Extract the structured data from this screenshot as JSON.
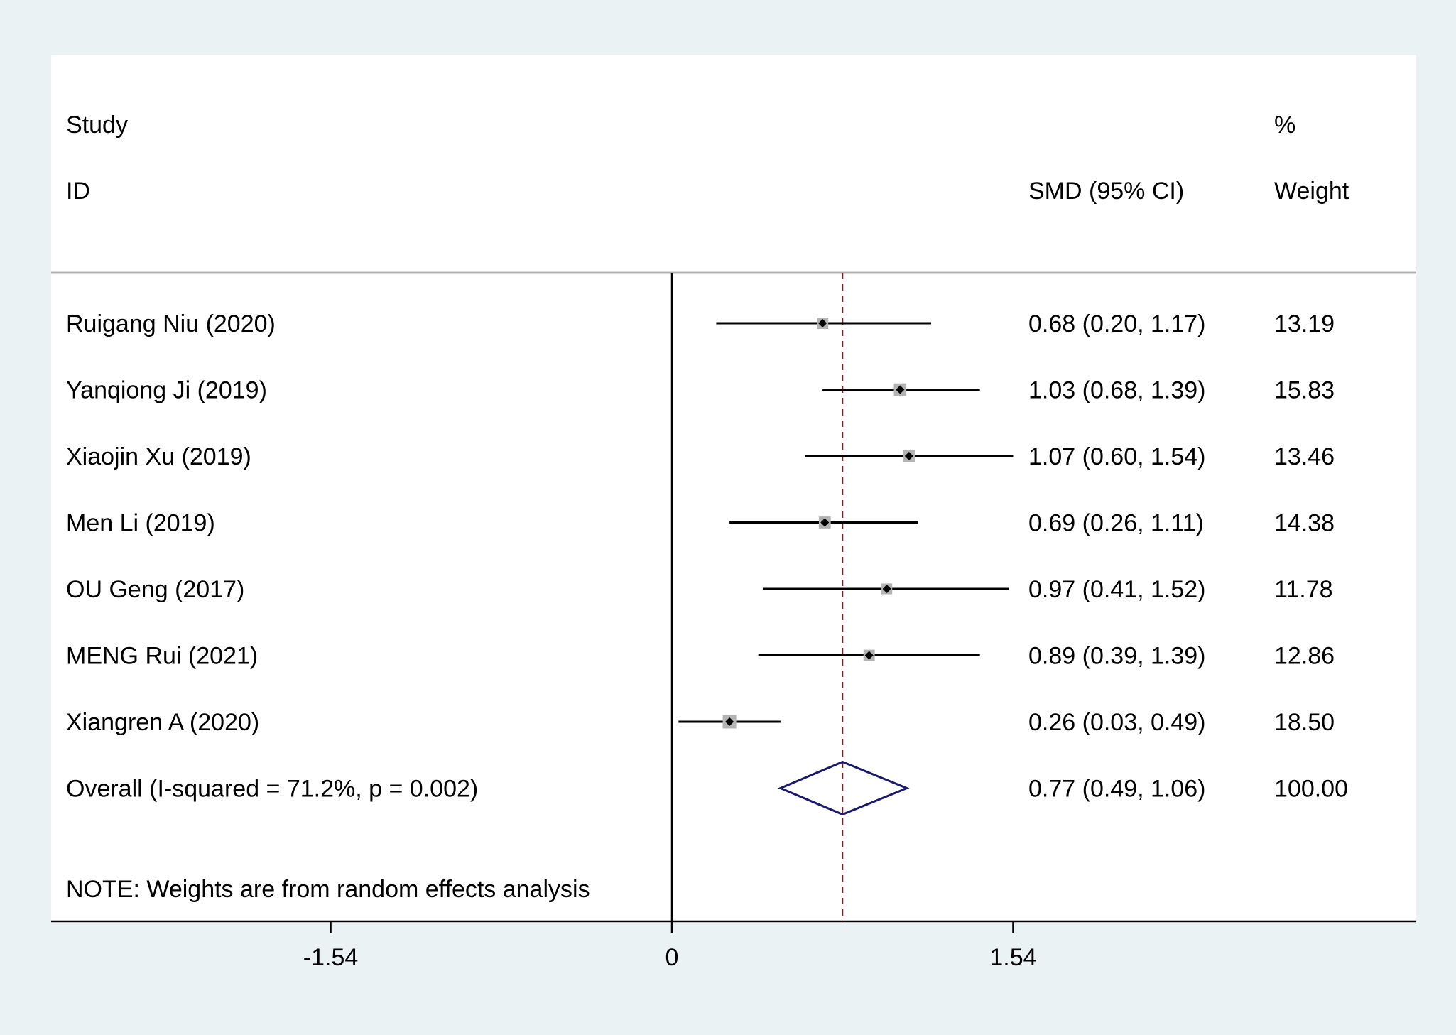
{
  "chart_data": {
    "type": "forest",
    "header": {
      "study_line1": "Study",
      "study_line2": "ID",
      "estimate_label": "SMD (95% CI)",
      "weight_line1": "%",
      "weight_line2": "Weight"
    },
    "studies": [
      {
        "label": "Ruigang Niu (2020)",
        "smd": 0.68,
        "lower": 0.2,
        "upper": 1.17,
        "ci_text": "0.68 (0.20, 1.17)",
        "weight": 13.19,
        "weight_text": "13.19"
      },
      {
        "label": "Yanqiong Ji (2019)",
        "smd": 1.03,
        "lower": 0.68,
        "upper": 1.39,
        "ci_text": "1.03 (0.68, 1.39)",
        "weight": 15.83,
        "weight_text": "15.83"
      },
      {
        "label": "Xiaojin Xu (2019)",
        "smd": 1.07,
        "lower": 0.6,
        "upper": 1.54,
        "ci_text": "1.07 (0.60, 1.54)",
        "weight": 13.46,
        "weight_text": "13.46"
      },
      {
        "label": "Men Li (2019)",
        "smd": 0.69,
        "lower": 0.26,
        "upper": 1.11,
        "ci_text": "0.69 (0.26, 1.11)",
        "weight": 14.38,
        "weight_text": "14.38"
      },
      {
        "label": "OU Geng (2017)",
        "smd": 0.97,
        "lower": 0.41,
        "upper": 1.52,
        "ci_text": "0.97 (0.41, 1.52)",
        "weight": 11.78,
        "weight_text": "11.78"
      },
      {
        "label": "MENG Rui (2021)",
        "smd": 0.89,
        "lower": 0.39,
        "upper": 1.39,
        "ci_text": "0.89 (0.39, 1.39)",
        "weight": 12.86,
        "weight_text": "12.86"
      },
      {
        "label": "Xiangren A (2020)",
        "smd": 0.26,
        "lower": 0.03,
        "upper": 0.49,
        "ci_text": "0.26 (0.03, 0.49)",
        "weight": 18.5,
        "weight_text": "18.50"
      }
    ],
    "overall": {
      "label": "Overall  (I-squared = 71.2%, p = 0.002)",
      "smd": 0.77,
      "lower": 0.49,
      "upper": 1.06,
      "ci_text": "0.77 (0.49, 1.06)",
      "weight_text": "100.00"
    },
    "note": "NOTE: Weights are from random effects analysis",
    "x_ticks": [
      {
        "value": -1.54,
        "label": "-1.54"
      },
      {
        "value": 0,
        "label": "0"
      },
      {
        "value": 1.54,
        "label": "1.54"
      }
    ],
    "xlim": [
      -2.8,
      3.35
    ],
    "null_line": 0,
    "colors": {
      "background": "#eaf2f3",
      "panel": "#ffffff",
      "ci_line": "#000000",
      "weight_box": "#b3b3b3",
      "point": "#000000",
      "overall_diamond": "#1a1a6e",
      "overall_line": "#8b1a1a",
      "separator": "#b0b0b0"
    }
  }
}
